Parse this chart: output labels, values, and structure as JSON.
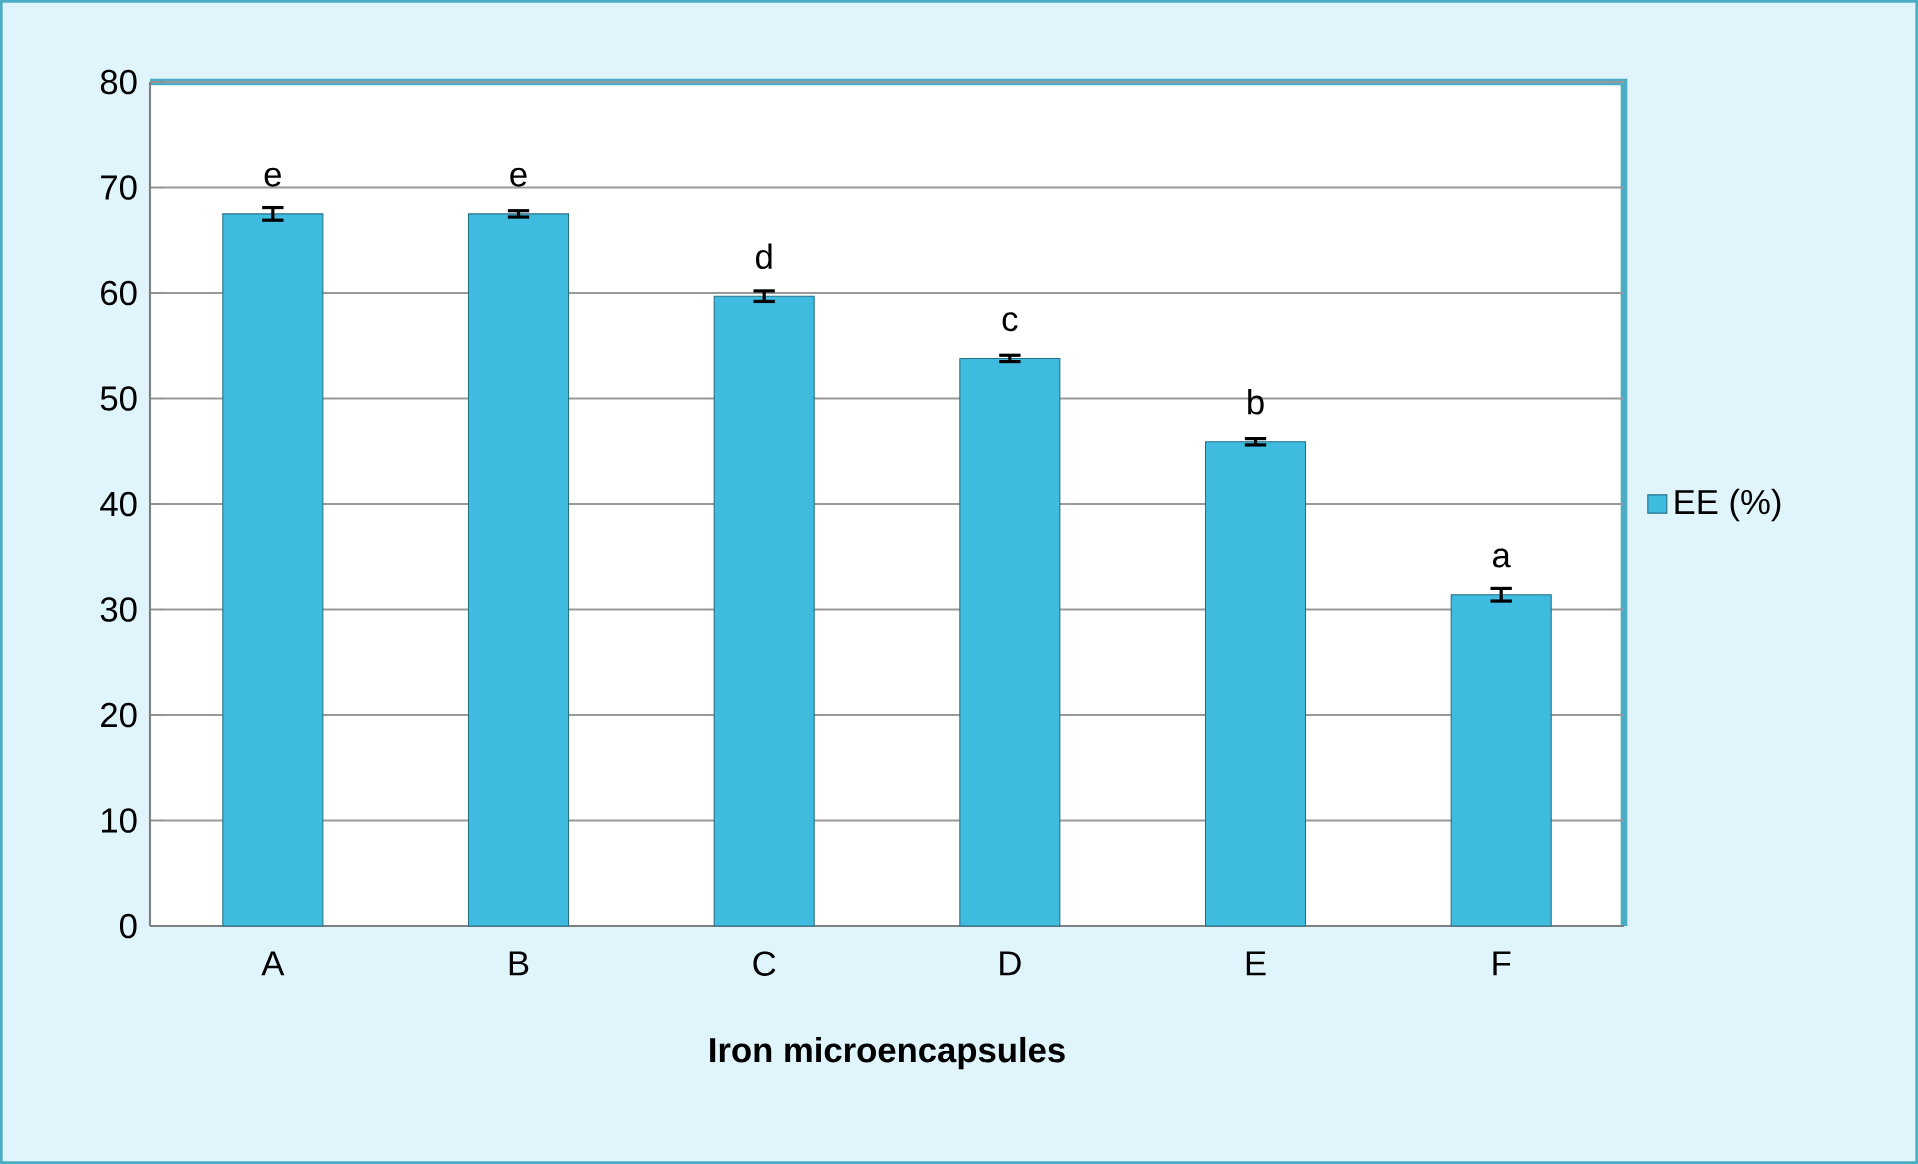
{
  "chart_data": {
    "type": "bar",
    "xlabel": "Iron microencapsules",
    "categories": [
      "A",
      "B",
      "C",
      "D",
      "E",
      "F"
    ],
    "series": [
      {
        "name": "EE (%)",
        "color": "#3fbbdf",
        "values": [
          67.5,
          67.5,
          59.7,
          53.8,
          45.9,
          31.4
        ],
        "errors": [
          0.6,
          0.3,
          0.5,
          0.3,
          0.3,
          0.6
        ]
      }
    ],
    "ylim": [
      0,
      80
    ],
    "yticks": [
      0,
      10,
      20,
      30,
      40,
      50,
      60,
      70,
      80
    ],
    "grid": "y",
    "legend": "right",
    "annotations": [
      {
        "text": "e",
        "x": "A",
        "y": 67.5
      },
      {
        "text": "e",
        "x": "B",
        "y": 67.5
      },
      {
        "text": "d",
        "x": "C",
        "y": 59.7
      },
      {
        "text": "c",
        "x": "D",
        "y": 53.8
      },
      {
        "text": "b",
        "x": "E",
        "y": 45.9
      },
      {
        "text": "a",
        "x": "F",
        "y": 31.4
      }
    ]
  }
}
